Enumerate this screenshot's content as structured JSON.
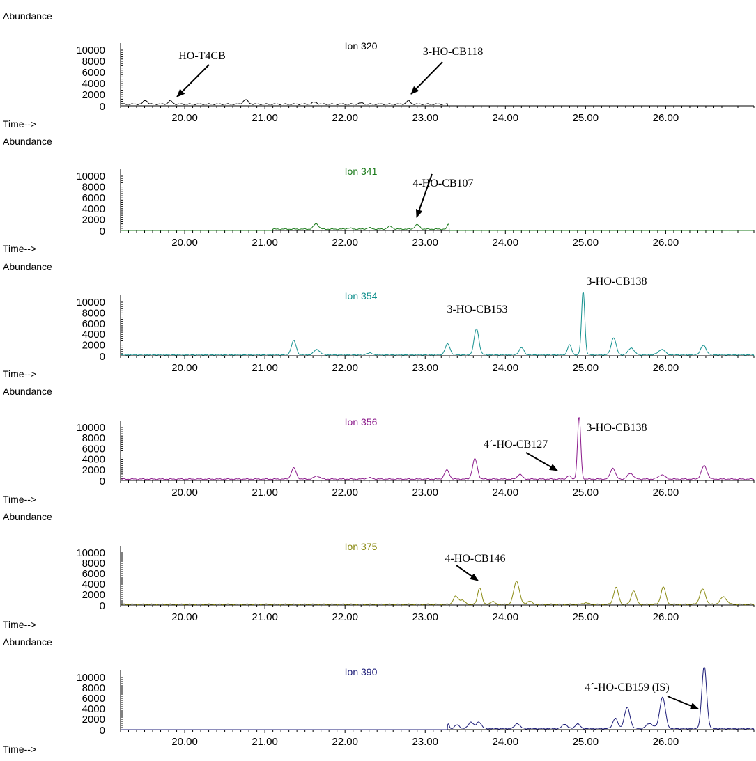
{
  "y_axis_title": "Abundance",
  "x_axis_title": "Time-->",
  "chart_data": [
    {
      "type": "line",
      "ion_label": "Ion 320",
      "color": "#000000",
      "xlim": [
        19.2,
        27.1
      ],
      "ylim": [
        0,
        10000
      ],
      "y_ticks": [
        "10000",
        "8000",
        "6000",
        "4000",
        "2000",
        "0"
      ],
      "x_ticks": [
        "20.00",
        "21.00",
        "22.00",
        "23.00",
        "24.00",
        "25.00",
        "26.00"
      ],
      "trace_range": [
        19.2,
        23.28
      ],
      "baseline": 300,
      "peaks": [
        {
          "x": 19.51,
          "h": 700,
          "w": 0.025
        },
        {
          "x": 19.82,
          "h": 600,
          "w": 0.025
        },
        {
          "x": 20.76,
          "h": 800,
          "w": 0.03
        },
        {
          "x": 21.62,
          "h": 350,
          "w": 0.03
        },
        {
          "x": 22.2,
          "h": 200,
          "w": 0.03
        },
        {
          "x": 22.79,
          "h": 600,
          "w": 0.025
        }
      ],
      "annotations": [
        {
          "text": "HO-T4CB",
          "x": 19.82
        },
        {
          "text": "3-HO-CB118",
          "x": 22.79
        }
      ]
    },
    {
      "type": "line",
      "ion_label": "Ion 341",
      "color": "#1a7a1a",
      "xlim": [
        19.2,
        27.1
      ],
      "ylim": [
        0,
        10000
      ],
      "y_ticks": [
        "10000",
        "8000",
        "6000",
        "4000",
        "2000",
        "0"
      ],
      "x_ticks": [
        "20.00",
        "21.00",
        "22.00",
        "23.00",
        "24.00",
        "25.00",
        "26.00"
      ],
      "trace_range": [
        21.1,
        23.3
      ],
      "baseline": 250,
      "peaks": [
        {
          "x": 21.64,
          "h": 1000,
          "w": 0.03
        },
        {
          "x": 22.05,
          "h": 200,
          "w": 0.03
        },
        {
          "x": 22.3,
          "h": 250,
          "w": 0.03
        },
        {
          "x": 22.56,
          "h": 500,
          "w": 0.03
        },
        {
          "x": 22.9,
          "h": 800,
          "w": 0.03
        },
        {
          "x": 23.29,
          "h": 900,
          "w": 0.015
        }
      ],
      "annotations": [
        {
          "text": "4-HO-CB107",
          "x": 22.9
        }
      ]
    },
    {
      "type": "line",
      "ion_label": "Ion 354",
      "color": "#12908e",
      "xlim": [
        19.2,
        27.1
      ],
      "ylim": [
        0,
        10000
      ],
      "y_ticks": [
        "10000",
        "8000",
        "6000",
        "4000",
        "2000",
        "0"
      ],
      "x_ticks": [
        "20.00",
        "21.00",
        "22.00",
        "23.00",
        "24.00",
        "25.00",
        "26.00"
      ],
      "trace_range": [
        19.2,
        27.1
      ],
      "baseline": 200,
      "peaks": [
        {
          "x": 21.36,
          "h": 2600,
          "w": 0.03
        },
        {
          "x": 21.65,
          "h": 1000,
          "w": 0.035
        },
        {
          "x": 22.3,
          "h": 300,
          "w": 0.04
        },
        {
          "x": 23.28,
          "h": 2000,
          "w": 0.03
        },
        {
          "x": 23.64,
          "h": 4800,
          "w": 0.03
        },
        {
          "x": 24.2,
          "h": 1300,
          "w": 0.03
        },
        {
          "x": 24.8,
          "h": 1800,
          "w": 0.025
        },
        {
          "x": 24.97,
          "h": 12000,
          "w": 0.02
        },
        {
          "x": 25.35,
          "h": 3200,
          "w": 0.03
        },
        {
          "x": 25.57,
          "h": 1300,
          "w": 0.035
        },
        {
          "x": 25.95,
          "h": 1000,
          "w": 0.04
        },
        {
          "x": 26.47,
          "h": 1700,
          "w": 0.035
        }
      ],
      "annotations": [
        {
          "text": "3-HO-CB153",
          "x": 23.64
        },
        {
          "text": "3-HO-CB138",
          "x": 24.97
        }
      ]
    },
    {
      "type": "line",
      "ion_label": "Ion 356",
      "color": "#8b1a8b",
      "xlim": [
        19.2,
        27.1
      ],
      "ylim": [
        0,
        10000
      ],
      "y_ticks": [
        "10000",
        "8000",
        "6000",
        "4000",
        "2000",
        "0"
      ],
      "x_ticks": [
        "20.00",
        "21.00",
        "22.00",
        "23.00",
        "24.00",
        "25.00",
        "26.00"
      ],
      "trace_range": [
        19.2,
        27.1
      ],
      "baseline": 250,
      "peaks": [
        {
          "x": 21.36,
          "h": 2100,
          "w": 0.03
        },
        {
          "x": 21.65,
          "h": 600,
          "w": 0.035
        },
        {
          "x": 22.3,
          "h": 250,
          "w": 0.04
        },
        {
          "x": 23.27,
          "h": 1700,
          "w": 0.03
        },
        {
          "x": 23.62,
          "h": 3800,
          "w": 0.03
        },
        {
          "x": 24.18,
          "h": 900,
          "w": 0.03
        },
        {
          "x": 24.79,
          "h": 600,
          "w": 0.025
        },
        {
          "x": 24.92,
          "h": 12000,
          "w": 0.02
        },
        {
          "x": 25.34,
          "h": 2100,
          "w": 0.03
        },
        {
          "x": 25.56,
          "h": 1100,
          "w": 0.035
        },
        {
          "x": 25.95,
          "h": 800,
          "w": 0.04
        },
        {
          "x": 26.48,
          "h": 2500,
          "w": 0.035
        }
      ],
      "annotations": [
        {
          "text": "4´-HO-CB127",
          "x": 24.79
        },
        {
          "text": "3-HO-CB138",
          "x": 24.92
        }
      ]
    },
    {
      "type": "line",
      "ion_label": "Ion 375",
      "color": "#8a8a12",
      "xlim": [
        19.2,
        27.1
      ],
      "ylim": [
        0,
        10000
      ],
      "y_ticks": [
        "10000",
        "8000",
        "6000",
        "4000",
        "2000",
        "0"
      ],
      "x_ticks": [
        "20.00",
        "21.00",
        "22.00",
        "23.00",
        "24.00",
        "25.00",
        "26.00"
      ],
      "trace_range": [
        19.2,
        27.1
      ],
      "baseline": 150,
      "peaks": [
        {
          "x": 23.38,
          "h": 1500,
          "w": 0.03
        },
        {
          "x": 23.46,
          "h": 800,
          "w": 0.03
        },
        {
          "x": 23.68,
          "h": 3200,
          "w": 0.025
        },
        {
          "x": 23.84,
          "h": 500,
          "w": 0.03
        },
        {
          "x": 24.14,
          "h": 4400,
          "w": 0.035
        },
        {
          "x": 24.3,
          "h": 600,
          "w": 0.03
        },
        {
          "x": 25.0,
          "h": 300,
          "w": 0.03
        },
        {
          "x": 25.38,
          "h": 3200,
          "w": 0.03
        },
        {
          "x": 25.6,
          "h": 2600,
          "w": 0.03
        },
        {
          "x": 25.97,
          "h": 3300,
          "w": 0.03
        },
        {
          "x": 26.46,
          "h": 2900,
          "w": 0.035
        },
        {
          "x": 26.72,
          "h": 1400,
          "w": 0.04
        }
      ],
      "annotations": [
        {
          "text": "4-HO-CB146",
          "x": 23.68
        }
      ]
    },
    {
      "type": "line",
      "ion_label": "Ion 390",
      "color": "#1c1c78",
      "xlim": [
        19.2,
        27.1
      ],
      "ylim": [
        0,
        10000
      ],
      "y_ticks": [
        "10000",
        "8000",
        "6000",
        "4000",
        "2000",
        "0"
      ],
      "x_ticks": [
        "20.00",
        "21.00",
        "22.00",
        "23.00",
        "24.00",
        "25.00",
        "26.00"
      ],
      "trace_range": [
        23.28,
        27.1
      ],
      "baseline": 200,
      "peaks": [
        {
          "x": 23.29,
          "h": 900,
          "w": 0.012
        },
        {
          "x": 23.4,
          "h": 700,
          "w": 0.03
        },
        {
          "x": 23.57,
          "h": 1300,
          "w": 0.03
        },
        {
          "x": 23.67,
          "h": 1300,
          "w": 0.03
        },
        {
          "x": 24.15,
          "h": 1000,
          "w": 0.03
        },
        {
          "x": 24.74,
          "h": 900,
          "w": 0.03
        },
        {
          "x": 24.9,
          "h": 900,
          "w": 0.03
        },
        {
          "x": 25.37,
          "h": 2000,
          "w": 0.03
        },
        {
          "x": 25.52,
          "h": 4000,
          "w": 0.035
        },
        {
          "x": 25.8,
          "h": 1000,
          "w": 0.04
        },
        {
          "x": 25.96,
          "h": 6000,
          "w": 0.035
        },
        {
          "x": 26.48,
          "h": 12000,
          "w": 0.03
        }
      ],
      "annotations": [
        {
          "text": "4´-HO-CB159 (IS)",
          "x": 26.48
        }
      ]
    }
  ]
}
